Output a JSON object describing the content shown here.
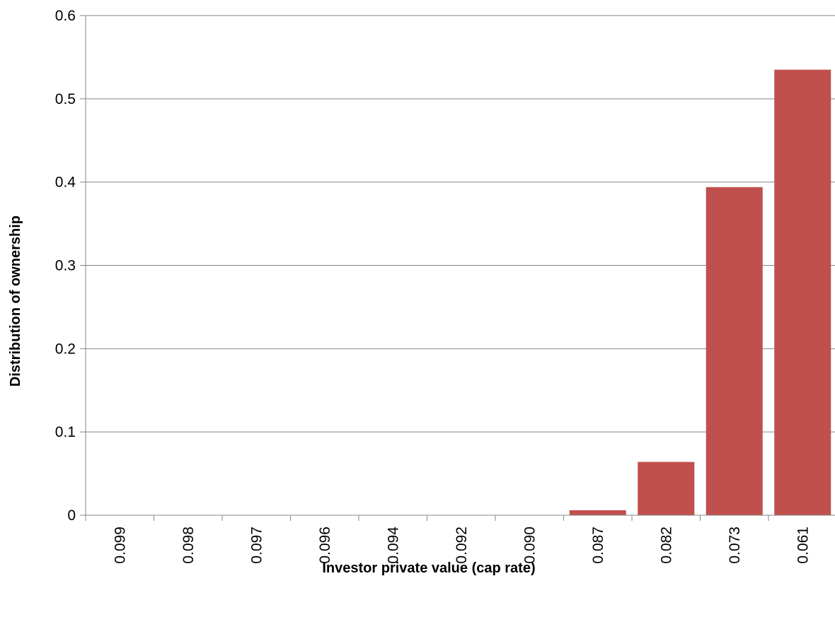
{
  "chart_data": {
    "type": "bar",
    "title": "",
    "xlabel": "Investor private value (cap rate)",
    "ylabel": "Distribution of ownership",
    "categories": [
      "0.099",
      "0.098",
      "0.097",
      "0.096",
      "0.094",
      "0.092",
      "0.090",
      "0.087",
      "0.082",
      "0.073",
      "0.061"
    ],
    "values": [
      0,
      0,
      0,
      0,
      0,
      0,
      0,
      0.006,
      0.064,
      0.394,
      0.535
    ],
    "ylim": [
      0,
      0.6
    ],
    "yticks": [
      "0",
      "0.1",
      "0.2",
      "0.3",
      "0.4",
      "0.5",
      "0.6"
    ],
    "grid": true,
    "legend": "none",
    "colors": {
      "bar": "#c0504d",
      "grid": "#868686",
      "axis": "#868686"
    }
  }
}
